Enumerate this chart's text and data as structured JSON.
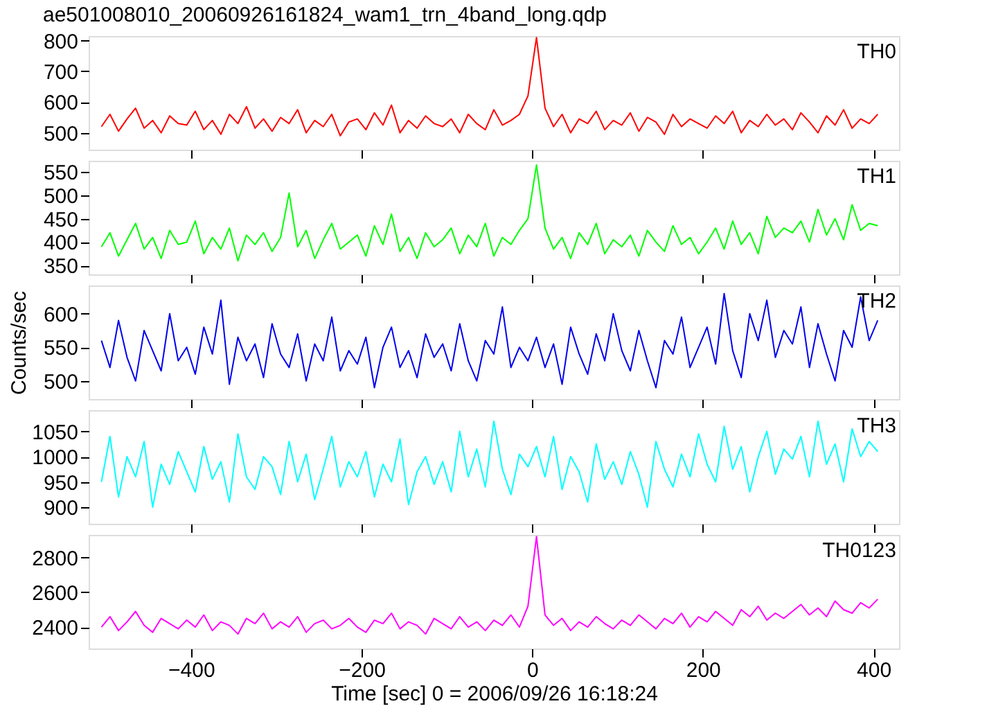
{
  "chart_data": [
    {
      "type": "line",
      "title": "ae501008010_20060926161824_wam1_trn_4band_long.qdp",
      "annotations": [
        "TH0"
      ],
      "xlim": [
        -520,
        430
      ],
      "xticks": [
        -400,
        -200,
        0,
        200,
        400
      ],
      "ylim": [
        445,
        815
      ],
      "yticks": [
        500,
        600,
        700,
        800
      ],
      "tick_labels": "y",
      "grid": false,
      "x": [
        -505,
        -495,
        -485,
        -475,
        -465,
        -455,
        -445,
        -435,
        -425,
        -415,
        -405,
        -395,
        -385,
        -375,
        -365,
        -355,
        -345,
        -335,
        -325,
        -315,
        -305,
        -295,
        -285,
        -275,
        -265,
        -255,
        -245,
        -235,
        -225,
        -215,
        -205,
        -195,
        -185,
        -175,
        -165,
        -155,
        -145,
        -135,
        -125,
        -115,
        -105,
        -95,
        -85,
        -75,
        -65,
        -55,
        -45,
        -35,
        -25,
        -15,
        -5,
        5,
        15,
        25,
        35,
        45,
        55,
        65,
        75,
        85,
        95,
        105,
        115,
        125,
        135,
        145,
        155,
        165,
        175,
        185,
        195,
        205,
        215,
        225,
        235,
        245,
        255,
        265,
        275,
        285,
        295,
        305,
        315,
        325,
        335,
        345,
        355,
        365,
        375,
        385,
        395,
        405
      ],
      "series": [
        {
          "color": "#ff0000",
          "values": [
            520,
            560,
            505,
            545,
            580,
            515,
            540,
            500,
            555,
            530,
            525,
            570,
            510,
            540,
            495,
            560,
            530,
            585,
            515,
            545,
            505,
            550,
            530,
            575,
            500,
            540,
            520,
            560,
            490,
            535,
            545,
            510,
            565,
            525,
            590,
            500,
            540,
            515,
            555,
            530,
            520,
            545,
            500,
            560,
            530,
            510,
            575,
            525,
            540,
            560,
            620,
            810,
            580,
            520,
            560,
            500,
            545,
            530,
            570,
            510,
            540,
            525,
            565,
            505,
            550,
            535,
            495,
            560,
            520,
            545,
            530,
            515,
            555,
            530,
            570,
            500,
            540,
            520,
            560,
            525,
            545,
            510,
            565,
            535,
            500,
            555,
            525,
            575,
            515,
            545,
            530,
            560
          ]
        }
      ]
    },
    {
      "type": "line",
      "annotations": [
        "TH1"
      ],
      "xlim": [
        -520,
        430
      ],
      "xticks": [
        -400,
        -200,
        0,
        200,
        400
      ],
      "ylim": [
        331,
        574
      ],
      "yticks": [
        350,
        400,
        450,
        500,
        550
      ],
      "tick_labels": "y",
      "grid": false,
      "x": [
        -505,
        -495,
        -485,
        -475,
        -465,
        -455,
        -445,
        -435,
        -425,
        -415,
        -405,
        -395,
        -385,
        -375,
        -365,
        -355,
        -345,
        -335,
        -325,
        -315,
        -305,
        -295,
        -285,
        -275,
        -265,
        -255,
        -245,
        -235,
        -225,
        -215,
        -205,
        -195,
        -185,
        -175,
        -165,
        -155,
        -145,
        -135,
        -125,
        -115,
        -105,
        -95,
        -85,
        -75,
        -65,
        -55,
        -45,
        -35,
        -25,
        -15,
        -5,
        5,
        15,
        25,
        35,
        45,
        55,
        65,
        75,
        85,
        95,
        105,
        115,
        125,
        135,
        145,
        155,
        165,
        175,
        185,
        195,
        205,
        215,
        225,
        235,
        245,
        255,
        265,
        275,
        285,
        295,
        305,
        315,
        325,
        335,
        345,
        355,
        365,
        375,
        385,
        395,
        405
      ],
      "series": [
        {
          "color": "#00ff00",
          "values": [
            390,
            420,
            370,
            405,
            440,
            385,
            410,
            365,
            425,
            395,
            400,
            445,
            375,
            410,
            385,
            430,
            360,
            415,
            395,
            420,
            380,
            410,
            505,
            390,
            425,
            365,
            405,
            440,
            385,
            400,
            415,
            370,
            435,
            395,
            460,
            380,
            410,
            365,
            420,
            390,
            405,
            430,
            375,
            415,
            390,
            440,
            370,
            410,
            395,
            425,
            450,
            565,
            430,
            385,
            410,
            365,
            420,
            395,
            440,
            375,
            405,
            390,
            415,
            370,
            425,
            400,
            380,
            435,
            395,
            410,
            375,
            400,
            430,
            385,
            445,
            395,
            420,
            375,
            455,
            410,
            430,
            420,
            445,
            400,
            470,
            415,
            450,
            405,
            480,
            425,
            440,
            435
          ]
        }
      ]
    },
    {
      "type": "line",
      "annotations": [
        "TH2"
      ],
      "ylabel": "Counts/sec",
      "xlim": [
        -520,
        430
      ],
      "xticks": [
        -400,
        -200,
        0,
        200,
        400
      ],
      "ylim": [
        473,
        642
      ],
      "yticks": [
        500,
        550,
        600
      ],
      "tick_labels": "y",
      "grid": false,
      "x": [
        -505,
        -495,
        -485,
        -475,
        -465,
        -455,
        -445,
        -435,
        -425,
        -415,
        -405,
        -395,
        -385,
        -375,
        -365,
        -355,
        -345,
        -335,
        -325,
        -315,
        -305,
        -295,
        -285,
        -275,
        -265,
        -255,
        -245,
        -235,
        -225,
        -215,
        -205,
        -195,
        -185,
        -175,
        -165,
        -155,
        -145,
        -135,
        -125,
        -115,
        -105,
        -95,
        -85,
        -75,
        -65,
        -55,
        -45,
        -35,
        -25,
        -15,
        -5,
        5,
        15,
        25,
        35,
        45,
        55,
        65,
        75,
        85,
        95,
        105,
        115,
        125,
        135,
        145,
        155,
        165,
        175,
        185,
        195,
        205,
        215,
        225,
        235,
        245,
        255,
        265,
        275,
        285,
        295,
        305,
        315,
        325,
        335,
        345,
        355,
        365,
        375,
        385,
        395,
        405
      ],
      "series": [
        {
          "color": "#0000ee",
          "values": [
            560,
            520,
            590,
            535,
            500,
            575,
            545,
            515,
            600,
            530,
            550,
            510,
            580,
            540,
            620,
            495,
            565,
            530,
            555,
            505,
            585,
            540,
            520,
            570,
            500,
            555,
            530,
            595,
            515,
            545,
            525,
            565,
            490,
            550,
            580,
            520,
            545,
            505,
            570,
            535,
            555,
            515,
            585,
            530,
            500,
            560,
            540,
            610,
            520,
            550,
            530,
            565,
            520,
            555,
            495,
            580,
            540,
            510,
            570,
            530,
            600,
            545,
            515,
            575,
            530,
            490,
            560,
            540,
            595,
            520,
            550,
            580,
            525,
            630,
            545,
            505,
            600,
            560,
            620,
            535,
            575,
            555,
            610,
            520,
            585,
            540,
            500,
            575,
            550,
            625,
            560,
            590
          ]
        }
      ]
    },
    {
      "type": "line",
      "annotations": [
        "TH3"
      ],
      "xlim": [
        -520,
        430
      ],
      "xticks": [
        -400,
        -200,
        0,
        200,
        400
      ],
      "ylim": [
        867,
        1092
      ],
      "yticks": [
        900,
        950,
        1000,
        1050
      ],
      "tick_labels": "y",
      "grid": false,
      "x": [
        -505,
        -495,
        -485,
        -475,
        -465,
        -455,
        -445,
        -435,
        -425,
        -415,
        -405,
        -395,
        -385,
        -375,
        -365,
        -355,
        -345,
        -335,
        -325,
        -315,
        -305,
        -295,
        -285,
        -275,
        -265,
        -255,
        -245,
        -235,
        -225,
        -215,
        -205,
        -195,
        -185,
        -175,
        -165,
        -155,
        -145,
        -135,
        -125,
        -115,
        -105,
        -95,
        -85,
        -75,
        -65,
        -55,
        -45,
        -35,
        -25,
        -15,
        -5,
        5,
        15,
        25,
        35,
        45,
        55,
        65,
        75,
        85,
        95,
        105,
        115,
        125,
        135,
        145,
        155,
        165,
        175,
        185,
        195,
        205,
        215,
        225,
        235,
        245,
        255,
        265,
        275,
        285,
        295,
        305,
        315,
        325,
        335,
        345,
        355,
        365,
        375,
        385,
        395,
        405
      ],
      "series": [
        {
          "color": "#00ffff",
          "values": [
            950,
            1040,
            920,
            1000,
            960,
            1030,
            900,
            985,
            945,
            1010,
            970,
            930,
            1020,
            955,
            990,
            910,
            1045,
            960,
            935,
            1000,
            980,
            925,
            1030,
            950,
            1005,
            915,
            975,
            1040,
            940,
            990,
            960,
            1010,
            920,
            985,
            950,
            1035,
            905,
            970,
            1000,
            945,
            990,
            930,
            1050,
            960,
            1015,
            940,
            1070,
            975,
            925,
            1005,
            980,
            1020,
            960,
            1040,
            935,
            1000,
            970,
            910,
            1025,
            955,
            990,
            945,
            1010,
            965,
            900,
            1030,
            975,
            940,
            1005,
            960,
            1045,
            985,
            950,
            1060,
            975,
            1020,
            930,
            1000,
            1050,
            965,
            1015,
            995,
            1040,
            960,
            1070,
            985,
            1025,
            950,
            1055,
            1000,
            1030,
            1010
          ]
        }
      ]
    },
    {
      "type": "line",
      "annotations": [
        "TH0123"
      ],
      "xlabel": "Time [sec] 0 = 2006/09/26 16:18:24",
      "xlim": [
        -520,
        430
      ],
      "xticks": [
        -400,
        -200,
        0,
        200,
        400
      ],
      "ylim": [
        2277,
        2930
      ],
      "yticks": [
        2400,
        2600,
        2800
      ],
      "grid": false,
      "x": [
        -505,
        -495,
        -485,
        -475,
        -465,
        -455,
        -445,
        -435,
        -425,
        -415,
        -405,
        -395,
        -385,
        -375,
        -365,
        -355,
        -345,
        -335,
        -325,
        -315,
        -305,
        -295,
        -285,
        -275,
        -265,
        -255,
        -245,
        -235,
        -225,
        -215,
        -205,
        -195,
        -185,
        -175,
        -165,
        -155,
        -145,
        -135,
        -125,
        -115,
        -105,
        -95,
        -85,
        -75,
        -65,
        -55,
        -45,
        -35,
        -25,
        -15,
        -5,
        5,
        15,
        25,
        35,
        45,
        55,
        65,
        75,
        85,
        95,
        105,
        115,
        125,
        135,
        145,
        155,
        165,
        175,
        185,
        195,
        205,
        215,
        225,
        235,
        245,
        255,
        265,
        275,
        285,
        295,
        305,
        315,
        325,
        335,
        345,
        355,
        365,
        375,
        385,
        395,
        405
      ],
      "series": [
        {
          "color": "#ff00ff",
          "values": [
            2400,
            2460,
            2380,
            2430,
            2490,
            2410,
            2370,
            2450,
            2420,
            2390,
            2440,
            2400,
            2470,
            2380,
            2430,
            2410,
            2360,
            2450,
            2420,
            2480,
            2390,
            2430,
            2400,
            2460,
            2370,
            2420,
            2440,
            2390,
            2410,
            2450,
            2400,
            2370,
            2440,
            2420,
            2480,
            2390,
            2430,
            2410,
            2360,
            2450,
            2420,
            2390,
            2460,
            2400,
            2430,
            2380,
            2440,
            2410,
            2470,
            2400,
            2520,
            2920,
            2470,
            2410,
            2450,
            2380,
            2430,
            2400,
            2460,
            2420,
            2390,
            2440,
            2410,
            2470,
            2430,
            2390,
            2450,
            2420,
            2480,
            2400,
            2460,
            2430,
            2490,
            2450,
            2410,
            2500,
            2460,
            2520,
            2440,
            2480,
            2450,
            2490,
            2530,
            2470,
            2510,
            2460,
            2550,
            2500,
            2480,
            2540,
            2510,
            2560
          ]
        }
      ]
    }
  ]
}
